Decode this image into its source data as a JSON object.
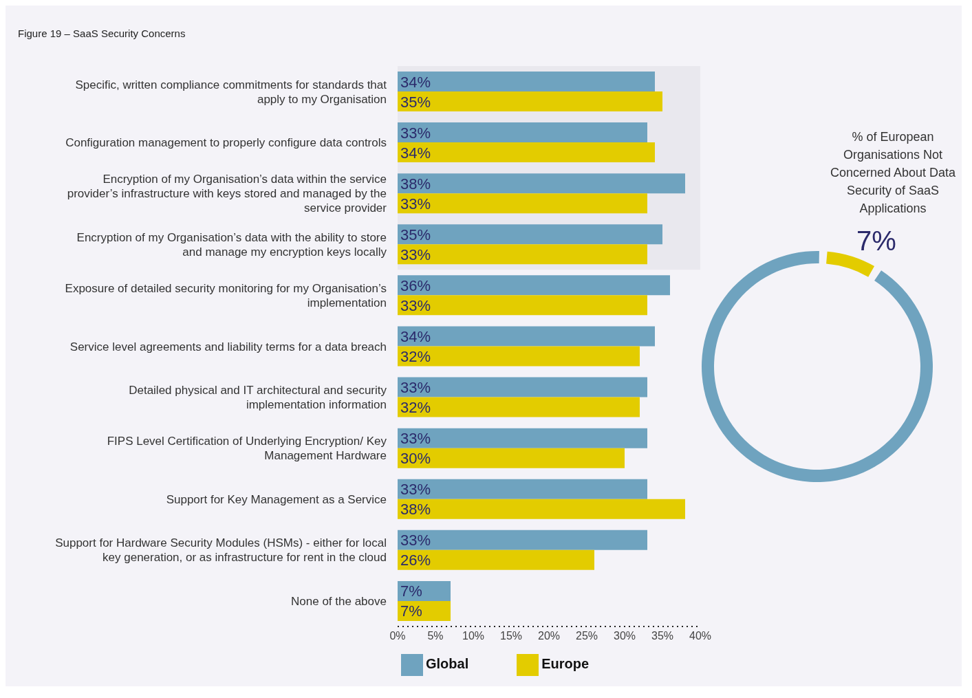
{
  "chart_data": [
    {
      "type": "bar",
      "orientation": "horizontal",
      "title": "Figure 19 – SaaS Security Concerns",
      "categories": [
        "Specific, written compliance commitments for standards that apply to my Organisation",
        "Configuration management to properly configure data controls",
        "Encryption of my Organisation’s data within the service provider’s infrastructure with keys stored and managed by the service provider",
        "Encryption of my Organisation’s data with the ability to store and manage my encryption keys locally",
        "Exposure of detailed security monitoring for my Organisation’s implementation",
        "Service level agreements and liability terms for a data breach",
        "Detailed physical and IT architectural and security implementation information",
        "FIPS Level Certification of Underlying Encryption/ Key Management Hardware",
        "Support for Key Management as a Service",
        "Support for Hardware Security Modules (HSMs) - either for local key generation, or as infrastructure for rent in the cloud",
        "None of the above"
      ],
      "series": [
        {
          "name": "Global",
          "color": "#6fa3bf",
          "values": [
            34,
            33,
            38,
            35,
            36,
            34,
            33,
            33,
            33,
            33,
            7
          ],
          "value_labels": [
            "34%",
            "33%",
            "38%",
            "35%",
            "36%",
            "34%",
            "33%",
            "33%",
            "33%",
            "33%",
            "7%"
          ]
        },
        {
          "name": "Europe",
          "color": "#e3cc00",
          "values": [
            35,
            34,
            33,
            33,
            33,
            32,
            32,
            30,
            38,
            26,
            7
          ],
          "value_labels": [
            "35%",
            "34%",
            "33%",
            "33%",
            "33%",
            "32%",
            "32%",
            "30%",
            "38%",
            "26%",
            "7%"
          ]
        }
      ],
      "xlim": [
        0,
        40
      ],
      "xticks": [
        {
          "value": 0,
          "label": "0%"
        },
        {
          "value": 5,
          "label": "5%"
        },
        {
          "value": 10,
          "label": "10%"
        },
        {
          "value": 15,
          "label": "15%"
        },
        {
          "value": 20,
          "label": "20%"
        },
        {
          "value": 25,
          "label": "25%"
        },
        {
          "value": 30,
          "label": "30%"
        },
        {
          "value": 35,
          "label": "35%"
        },
        {
          "value": 40,
          "label": "40%"
        }
      ],
      "bands": [
        {
          "axis": "y",
          "from": "Specific, written compliance commitments for standards that apply to my Organisation",
          "to": "Encryption of my Organisation’s data with the ability to store and manage my encryption keys locally",
          "color": "#e9e8ee"
        }
      ],
      "legend": "bottom"
    },
    {
      "type": "donut",
      "title": "% of European Organisations Not Concerned About Data Security of SaaS Applications",
      "categories": [
        null,
        null
      ],
      "values": [
        7,
        93
      ],
      "colors": [
        "#e3cc00",
        "#6fa3bf"
      ],
      "value_labels": [
        "7%",
        null
      ]
    }
  ]
}
